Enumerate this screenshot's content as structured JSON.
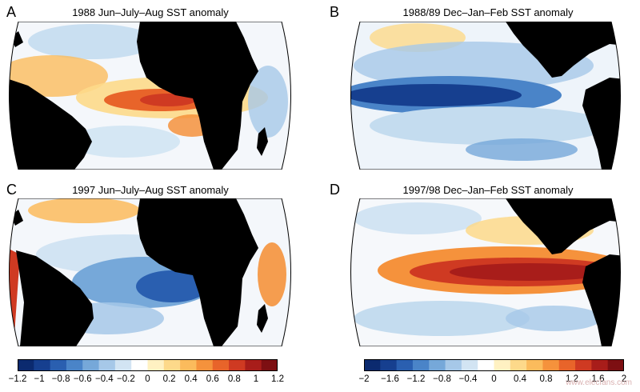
{
  "panels": [
    {
      "letter": "A",
      "title": "1988 Jun–July–Aug SST anomaly",
      "region": "atlantic",
      "pattern": "warm-atlantic"
    },
    {
      "letter": "B",
      "title": "1988/89 Dec–Jan–Feb SST anomaly",
      "region": "pacific",
      "pattern": "la-nina"
    },
    {
      "letter": "C",
      "title": "1997 Jun–July–Aug SST anomaly",
      "region": "atlantic",
      "pattern": "cold-atlantic"
    },
    {
      "letter": "D",
      "title": "1997/98 Dec–Jan–Feb SST anomaly",
      "region": "pacific",
      "pattern": "el-nino"
    }
  ],
  "colorbars": [
    {
      "ticks": [
        "−1.2",
        "−1",
        "−0.8",
        "−0.6",
        "−0.4",
        "−0.2",
        "0",
        "0.2",
        "0.4",
        "0.6",
        "0.8",
        "1",
        "1.2"
      ]
    },
    {
      "ticks": [
        "−2",
        "−1.6",
        "−1.2",
        "−0.8",
        "−0.4",
        "0",
        "0.4",
        "0.8",
        "1.2",
        "1.6",
        "2"
      ]
    }
  ],
  "colors": {
    "land": "#000000",
    "scale": [
      "#0b2a6f",
      "#163f8f",
      "#2a5fb0",
      "#4a84c8",
      "#76a8d9",
      "#a6c8e8",
      "#d2e4f3",
      "#ffffff",
      "#fff1c2",
      "#fdd98a",
      "#fbbb5c",
      "#f5923c",
      "#e8642a",
      "#cf3a22",
      "#a81d1a",
      "#7d0f12"
    ]
  },
  "watermark": "www.elecfans.com"
}
